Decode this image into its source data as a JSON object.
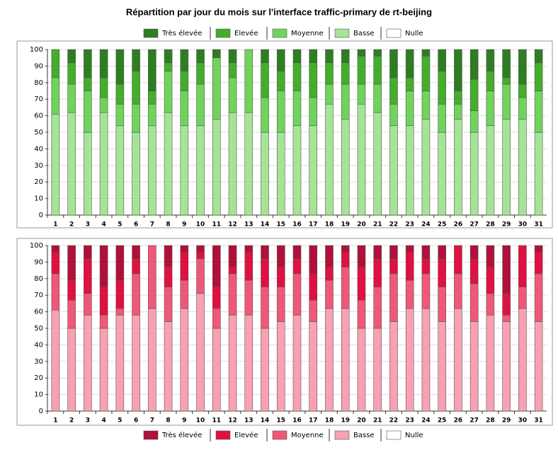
{
  "chart_data": [
    {
      "type": "bar",
      "stacked": true,
      "title": "Répartition par jour du mois sur l'interface traffic-primary de rt-beijing",
      "categories": [
        "1",
        "2",
        "3",
        "4",
        "5",
        "6",
        "7",
        "8",
        "9",
        "10",
        "11",
        "12",
        "13",
        "14",
        "15",
        "16",
        "17",
        "18",
        "19",
        "20",
        "21",
        "22",
        "23",
        "24",
        "25",
        "26",
        "27",
        "28",
        "29",
        "30",
        "31"
      ],
      "series": [
        {
          "name": "Très élevée",
          "color": "#2e7d22",
          "values": [
            0,
            8,
            17,
            17,
            21,
            13,
            25,
            8,
            13,
            8,
            5,
            8,
            0,
            8,
            13,
            8,
            8,
            8,
            8,
            4,
            4,
            17,
            17,
            4,
            13,
            25,
            18,
            13,
            17,
            21,
            8
          ]
        },
        {
          "name": "Elevée",
          "color": "#44ad2c",
          "values": [
            17,
            13,
            8,
            12,
            12,
            20,
            8,
            5,
            12,
            13,
            0,
            9,
            0,
            21,
            12,
            17,
            21,
            13,
            13,
            17,
            17,
            16,
            8,
            21,
            20,
            8,
            19,
            12,
            4,
            8,
            17
          ]
        },
        {
          "name": "Moyenne",
          "color": "#6fd35c",
          "values": [
            22,
            17,
            25,
            9,
            13,
            17,
            13,
            25,
            21,
            25,
            37,
            21,
            38,
            21,
            25,
            21,
            17,
            12,
            21,
            12,
            17,
            13,
            21,
            17,
            17,
            9,
            13,
            21,
            21,
            13,
            25
          ]
        },
        {
          "name": "Basse",
          "color": "#a3e595",
          "values": [
            61,
            62,
            50,
            62,
            54,
            50,
            54,
            62,
            54,
            54,
            58,
            62,
            62,
            50,
            50,
            54,
            54,
            67,
            58,
            67,
            62,
            54,
            54,
            58,
            50,
            58,
            50,
            54,
            58,
            58,
            50
          ]
        },
        {
          "name": "Nulle",
          "color": "#ffffff",
          "values": [
            0,
            0,
            0,
            0,
            0,
            0,
            0,
            0,
            0,
            0,
            0,
            0,
            0,
            0,
            0,
            0,
            0,
            0,
            0,
            0,
            0,
            0,
            0,
            0,
            0,
            0,
            0,
            0,
            0,
            0,
            0
          ]
        }
      ],
      "ylim": [
        0,
        100
      ],
      "yticks": [
        0,
        10,
        20,
        30,
        40,
        50,
        60,
        70,
        80,
        90,
        100
      ],
      "grid": true,
      "legend": "top"
    },
    {
      "type": "bar",
      "stacked": true,
      "categories": [
        "1",
        "2",
        "3",
        "4",
        "5",
        "6",
        "7",
        "8",
        "9",
        "10",
        "11",
        "12",
        "13",
        "14",
        "15",
        "16",
        "17",
        "18",
        "19",
        "20",
        "21",
        "22",
        "23",
        "24",
        "25",
        "26",
        "27",
        "28",
        "29",
        "30",
        "31"
      ],
      "series": [
        {
          "name": "Très élevée",
          "color": "#b0103a",
          "values": [
            4,
            21,
            8,
            25,
            21,
            8,
            0,
            13,
            4,
            4,
            25,
            13,
            4,
            8,
            13,
            8,
            17,
            13,
            4,
            13,
            8,
            8,
            4,
            8,
            8,
            0,
            8,
            13,
            29,
            0,
            4
          ]
        },
        {
          "name": "Elevée",
          "color": "#e0103f",
          "values": [
            13,
            12,
            21,
            17,
            17,
            9,
            0,
            12,
            17,
            4,
            13,
            4,
            17,
            17,
            12,
            9,
            16,
            8,
            9,
            20,
            17,
            9,
            17,
            9,
            17,
            17,
            15,
            16,
            13,
            25,
            13
          ]
        },
        {
          "name": "Moyenne",
          "color": "#ef5878",
          "values": [
            22,
            17,
            13,
            8,
            4,
            25,
            38,
            21,
            17,
            21,
            12,
            25,
            21,
            25,
            21,
            25,
            13,
            17,
            25,
            17,
            25,
            29,
            17,
            21,
            21,
            21,
            23,
            13,
            4,
            13,
            29
          ]
        },
        {
          "name": "Basse",
          "color": "#f7a1b2",
          "values": [
            61,
            50,
            58,
            50,
            58,
            58,
            62,
            54,
            62,
            71,
            50,
            58,
            58,
            50,
            54,
            58,
            54,
            62,
            62,
            50,
            50,
            54,
            62,
            62,
            54,
            62,
            54,
            58,
            54,
            62,
            54
          ]
        },
        {
          "name": "Nulle",
          "color": "#ffffff",
          "values": [
            0,
            0,
            0,
            0,
            0,
            0,
            0,
            0,
            0,
            0,
            0,
            0,
            0,
            0,
            0,
            0,
            0,
            0,
            0,
            0,
            0,
            0,
            0,
            0,
            0,
            0,
            0,
            0,
            0,
            0,
            0
          ]
        }
      ],
      "ylim": [
        0,
        100
      ],
      "yticks": [
        0,
        10,
        20,
        30,
        40,
        50,
        60,
        70,
        80,
        90,
        100
      ],
      "grid": true,
      "legend": "bottom"
    }
  ]
}
